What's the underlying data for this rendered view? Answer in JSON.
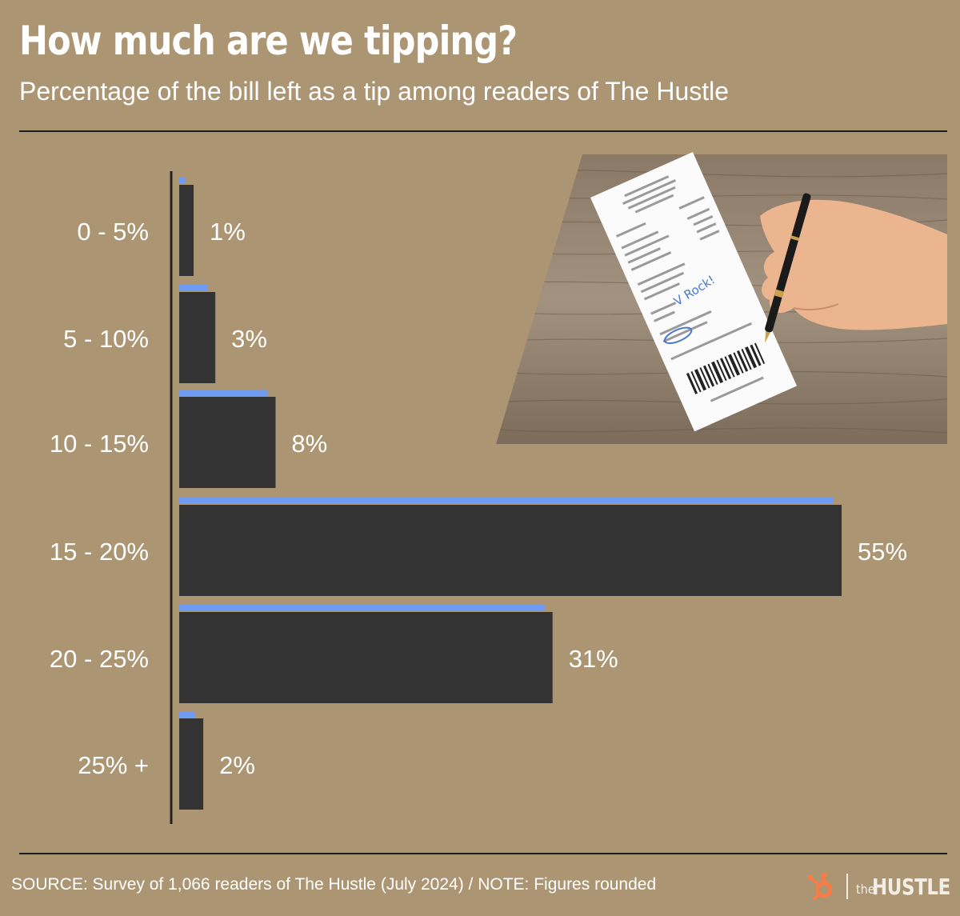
{
  "chart_data": {
    "type": "bar",
    "orientation": "horizontal",
    "title": "How much are we tipping?",
    "subtitle": "Percentage of the bill left as a tip among readers of The Hustle",
    "categories": [
      "0 - 5%",
      "5 - 10%",
      "10 - 15%",
      "15 - 20%",
      "20 - 25%",
      "25% +"
    ],
    "values": [
      1,
      3,
      8,
      55,
      31,
      2
    ],
    "value_labels": [
      "1%",
      "3%",
      "8%",
      "55%",
      "31%",
      "2%"
    ],
    "xlim": [
      0,
      55
    ],
    "grid": false,
    "colors": {
      "bar": "#333333",
      "accent": "#6f9cf2",
      "background": "#ab9573",
      "text": "#ffffff"
    }
  },
  "illustration": {
    "subject": "hand writing a tip on a restaurant receipt on a wooden table",
    "receipt_text": "V Rock!"
  },
  "footer": {
    "source": "SOURCE: Survey of 1,066 readers of The Hustle (July 2024) / NOTE: Figures rounded"
  },
  "logo": {
    "icon": "hubspot-sprocket-icon",
    "prefix": "the",
    "name": "HUSTLE"
  }
}
